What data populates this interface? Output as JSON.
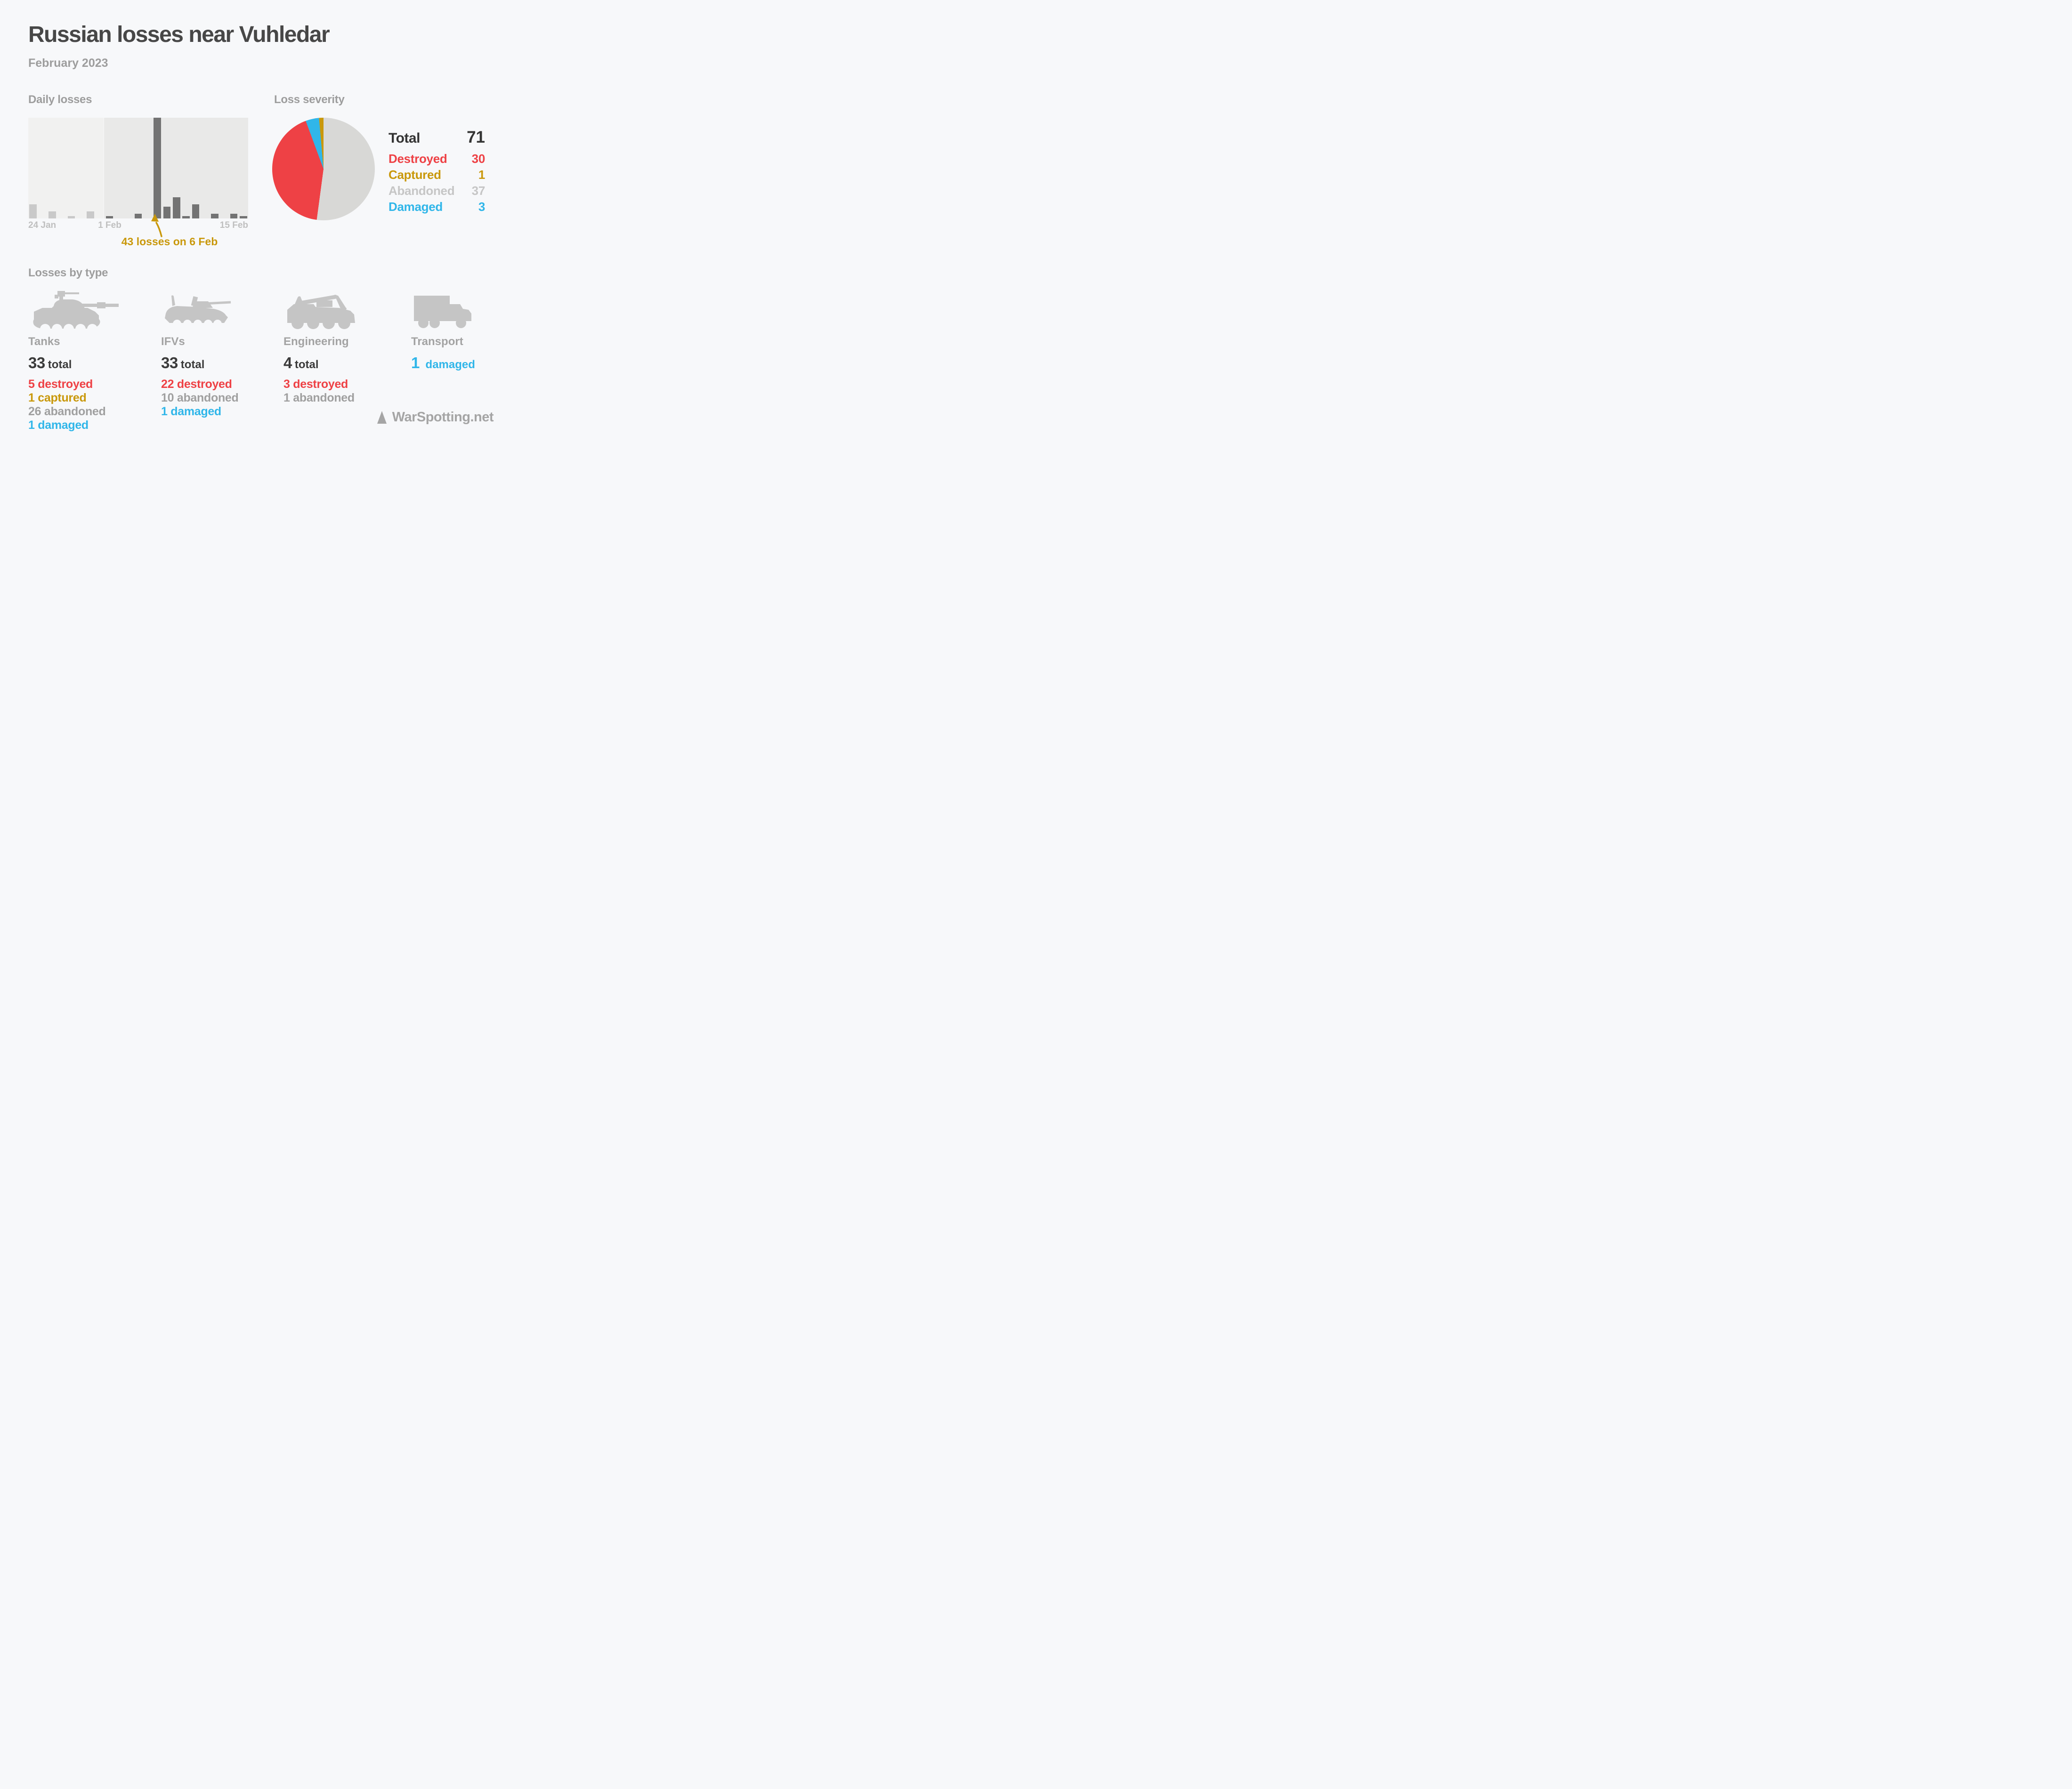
{
  "header": {
    "title": "Russian losses near Vuhledar",
    "subtitle": "February 2023"
  },
  "sections": {
    "daily_heading": "Daily losses",
    "severity_heading": "Loss severity",
    "types_heading": "Losses by type"
  },
  "chart_data": [
    {
      "type": "bar",
      "title": "Daily losses",
      "x_tick_labels": [
        "24 Jan",
        "1 Feb",
        "15 Feb"
      ],
      "days": [
        "24 Jan",
        "25 Jan",
        "26 Jan",
        "27 Jan",
        "28 Jan",
        "29 Jan",
        "30 Jan",
        "31 Jan",
        "1 Feb",
        "2 Feb",
        "3 Feb",
        "4 Feb",
        "5 Feb",
        "6 Feb",
        "7 Feb",
        "8 Feb",
        "9 Feb",
        "10 Feb",
        "11 Feb",
        "12 Feb",
        "13 Feb",
        "14 Feb",
        "15 Feb"
      ],
      "values": [
        6,
        0,
        3,
        0,
        1,
        0,
        3,
        0,
        1,
        0,
        0,
        2,
        0,
        43,
        5,
        9,
        1,
        6,
        0,
        2,
        0,
        2,
        1
      ],
      "february_starts_at_index": 8,
      "ymax": 43,
      "grid": false,
      "bar_colors": {
        "january_context": "#C9C9C9",
        "february": "#737373"
      },
      "panel_colors": {
        "january": "#F1F1F0",
        "february": "#E9E9E8"
      },
      "annotation": {
        "text": "43 losses on 6 Feb",
        "points_to_day": "6 Feb",
        "value": 43,
        "color": "#C9980B"
      }
    },
    {
      "type": "pie",
      "title": "Loss severity",
      "total": 71,
      "start_angle_deg": 0,
      "direction": "clockwise",
      "slices": [
        {
          "label": "Abandoned",
          "value": 37,
          "color": "#D8D8D6"
        },
        {
          "label": "Destroyed",
          "value": 30,
          "color": "#EE4145"
        },
        {
          "label": "Damaged",
          "value": 3,
          "color": "#30B6E9"
        },
        {
          "label": "Captured",
          "value": 1,
          "color": "#C9980B"
        }
      ],
      "legend_position": "right",
      "legend": {
        "total_label": "Total",
        "total_value": "71",
        "rows": [
          {
            "label": "Destroyed",
            "value": "30",
            "status": "destroyed"
          },
          {
            "label": "Captured",
            "value": "1",
            "status": "captured"
          },
          {
            "label": "Abandoned",
            "value": "37",
            "status": "abandoned"
          },
          {
            "label": "Damaged",
            "value": "3",
            "status": "damaged"
          }
        ]
      }
    }
  ],
  "types": {
    "cards": [
      {
        "icon": "tank-icon",
        "label": "Tanks",
        "total_value": "33",
        "total_word": "total",
        "stats": [
          {
            "count": "5",
            "word": "destroyed",
            "status": "destroyed"
          },
          {
            "count": "1",
            "word": "captured",
            "status": "captured"
          },
          {
            "count": "26",
            "word": "abandoned",
            "status": "abandoned"
          },
          {
            "count": "1",
            "word": "damaged",
            "status": "damaged"
          }
        ]
      },
      {
        "icon": "ifv-icon",
        "label": "IFVs",
        "total_value": "33",
        "total_word": "total",
        "stats": [
          {
            "count": "22",
            "word": "destroyed",
            "status": "destroyed"
          },
          {
            "count": "10",
            "word": "abandoned",
            "status": "abandoned"
          },
          {
            "count": "1",
            "word": "damaged",
            "status": "damaged"
          }
        ]
      },
      {
        "icon": "engineering-vehicle-icon",
        "label": "Engineering",
        "total_value": "4",
        "total_word": "total",
        "stats": [
          {
            "count": "3",
            "word": "destroyed",
            "status": "destroyed"
          },
          {
            "count": "1",
            "word": "abandoned",
            "status": "abandoned"
          }
        ]
      },
      {
        "icon": "truck-icon",
        "label": "Transport",
        "total_value": null,
        "total_word": null,
        "headline": {
          "count": "1",
          "word": "damaged",
          "status": "damaged"
        },
        "stats": []
      }
    ]
  },
  "footer": {
    "logo": "warspotting-triangle-icon",
    "text": "WarSpotting.net"
  },
  "colors": {
    "page_background": "#F7F8FA",
    "title_text": "#474747",
    "muted_heading": "#9D9D9D",
    "axis_tick": "#BFBFBF",
    "total_text": "#3B3B3B",
    "icon_gray": "#C5C5C5",
    "footer_gray": "#A5A5A5",
    "destroyed": "#EE4145",
    "captured": "#C9980B",
    "abandoned": "#C6C6C6",
    "abandoned_stat": "#A0A0A0",
    "damaged": "#30B6E9"
  }
}
